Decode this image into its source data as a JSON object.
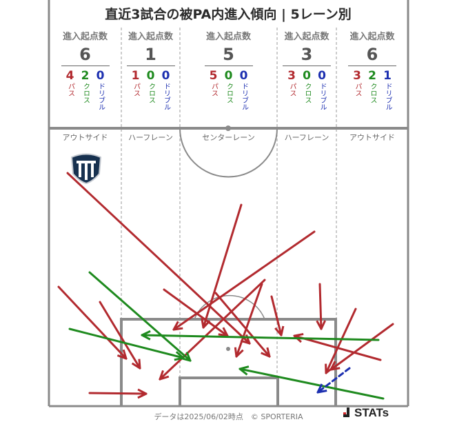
{
  "title": "直近3試合の被PA内進入傾向 | 5レーン別",
  "legend": {
    "pass": "パス",
    "cross": "クロス",
    "dribble": "ドリブル"
  },
  "lanes": [
    {
      "label": "進入起点数",
      "total": "6",
      "pass": "4",
      "cross": "2",
      "dribble": "0",
      "name": "アウトサイド"
    },
    {
      "label": "進入起点数",
      "total": "1",
      "pass": "1",
      "cross": "0",
      "dribble": "0",
      "name": "ハーフレーン"
    },
    {
      "label": "進入起点数",
      "total": "5",
      "pass": "5",
      "cross": "0",
      "dribble": "0",
      "name": "センターレーン"
    },
    {
      "label": "進入起点数",
      "total": "3",
      "pass": "3",
      "cross": "0",
      "dribble": "0",
      "name": "ハーフレーン"
    },
    {
      "label": "進入起点数",
      "total": "6",
      "pass": "3",
      "cross": "2",
      "dribble": "1",
      "name": "アウトサイド"
    }
  ],
  "colors": {
    "pass": "#b22a2f",
    "cross": "#1e8a1e",
    "dribble": "#1c2fb0"
  },
  "club_logo": "club-crest-icon",
  "footer": "データは2025/06/02時点　© SPORTERIA",
  "brand": "STATs"
}
